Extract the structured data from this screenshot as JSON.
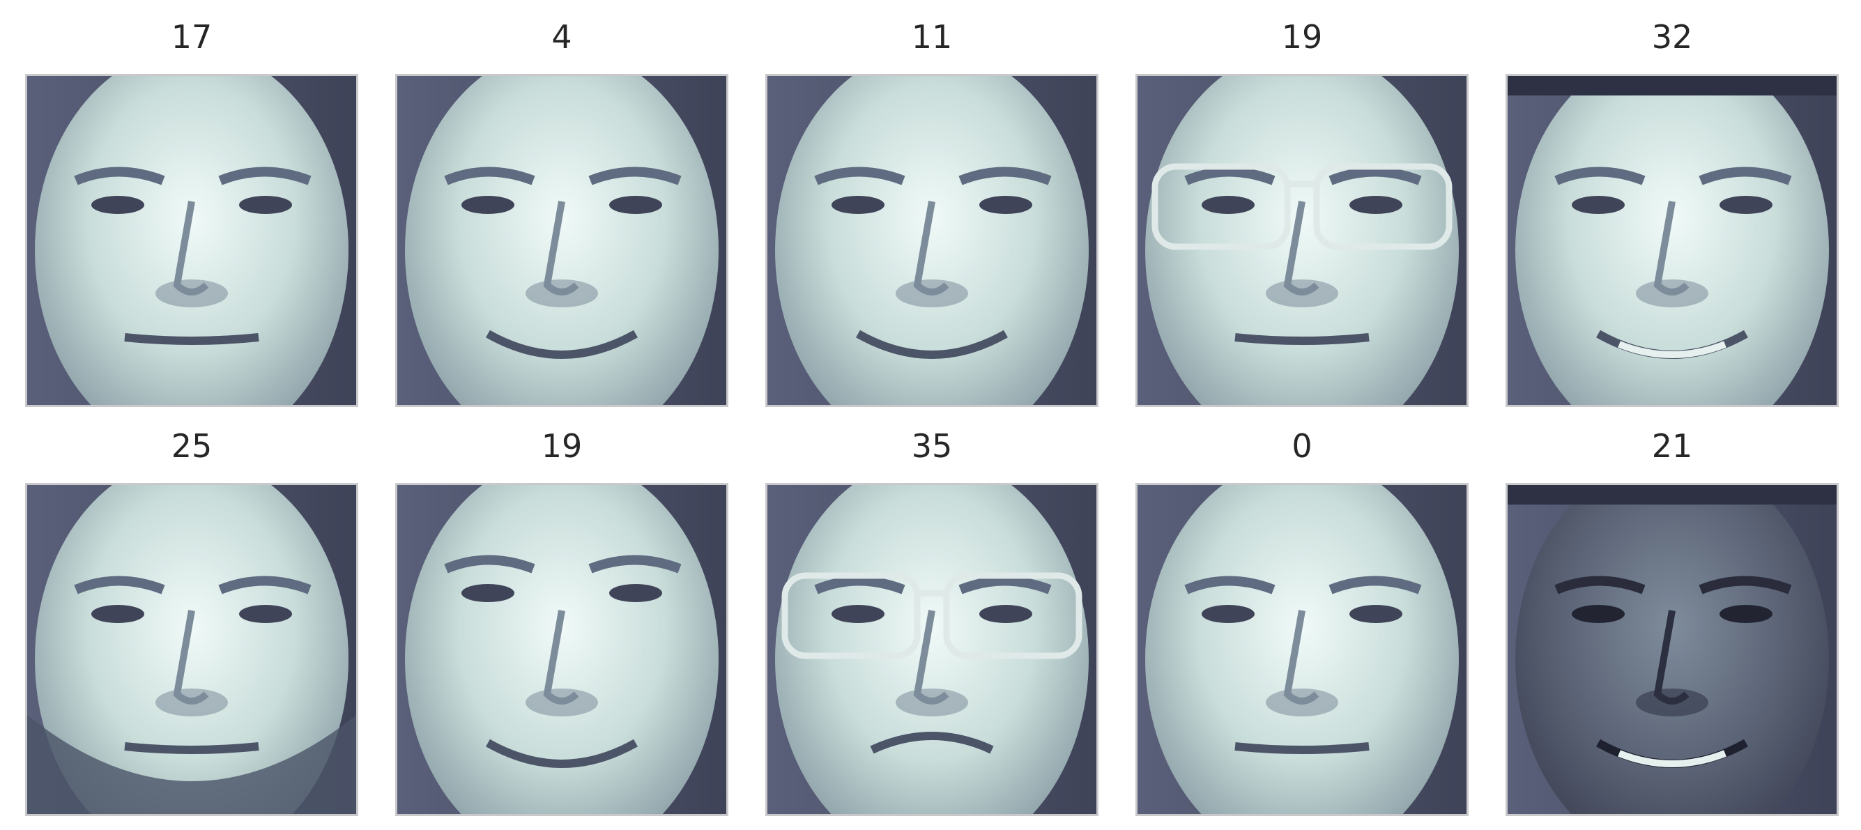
{
  "colors": {
    "dark": "#4a4e66",
    "mid": "#8aa1a8",
    "light": "#e4f2f0",
    "frame": "#c9c9cc",
    "title": "#262626"
  },
  "images": [
    {
      "label": "17",
      "variant": "plain"
    },
    {
      "label": "4",
      "variant": "plain-smile"
    },
    {
      "label": "11",
      "variant": "smile"
    },
    {
      "label": "19",
      "variant": "glasses"
    },
    {
      "label": "32",
      "variant": "grin-dark"
    },
    {
      "label": "25",
      "variant": "beard"
    },
    {
      "label": "19",
      "variant": "brows-smile"
    },
    {
      "label": "35",
      "variant": "aviators"
    },
    {
      "label": "0",
      "variant": "side"
    },
    {
      "label": "21",
      "variant": "dark-skin"
    }
  ]
}
